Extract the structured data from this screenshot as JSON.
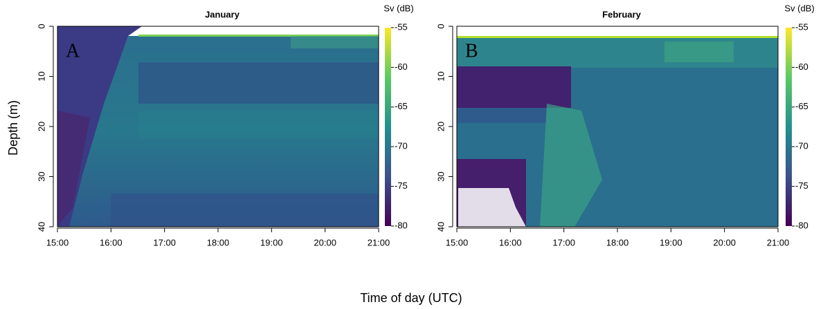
{
  "xlabel": "Time of day (UTC)",
  "ylabel": "Depth (m)",
  "chart_data": [
    {
      "type": "heatmap",
      "title": "January",
      "panel_label": "A",
      "xlim": [
        15,
        21
      ],
      "xticks": [
        {
          "value": 15,
          "label": "15:00"
        },
        {
          "value": 16,
          "label": "16:00"
        },
        {
          "value": 17,
          "label": "17:00"
        },
        {
          "value": 18,
          "label": "18:00"
        },
        {
          "value": 19,
          "label": "19:00"
        },
        {
          "value": 20,
          "label": "20:00"
        },
        {
          "value": 21,
          "label": "21:00"
        }
      ],
      "ylim": [
        40,
        0
      ],
      "yticks": [
        0,
        10,
        20,
        30,
        40
      ],
      "colorbar_label": "Sv (dB)",
      "clim": [
        -80,
        -55
      ],
      "cticks": [
        -80,
        -75,
        -70,
        -65,
        -60,
        -55
      ]
    },
    {
      "type": "heatmap",
      "title": "February",
      "panel_label": "B",
      "xlim": [
        15,
        21
      ],
      "xticks": [
        {
          "value": 15,
          "label": "15:00"
        },
        {
          "value": 16,
          "label": "16:00"
        },
        {
          "value": 17,
          "label": "17:00"
        },
        {
          "value": 18,
          "label": "18:00"
        },
        {
          "value": 19,
          "label": "19:00"
        },
        {
          "value": 20,
          "label": "20:00"
        },
        {
          "value": 21,
          "label": "21:00"
        }
      ],
      "ylim": [
        40,
        0
      ],
      "yticks": [
        0,
        10,
        20,
        30,
        40
      ],
      "colorbar_label": "Sv (dB)",
      "clim": [
        -80,
        -55
      ],
      "cticks": [
        -80,
        -75,
        -70,
        -65,
        -60,
        -55
      ]
    }
  ]
}
